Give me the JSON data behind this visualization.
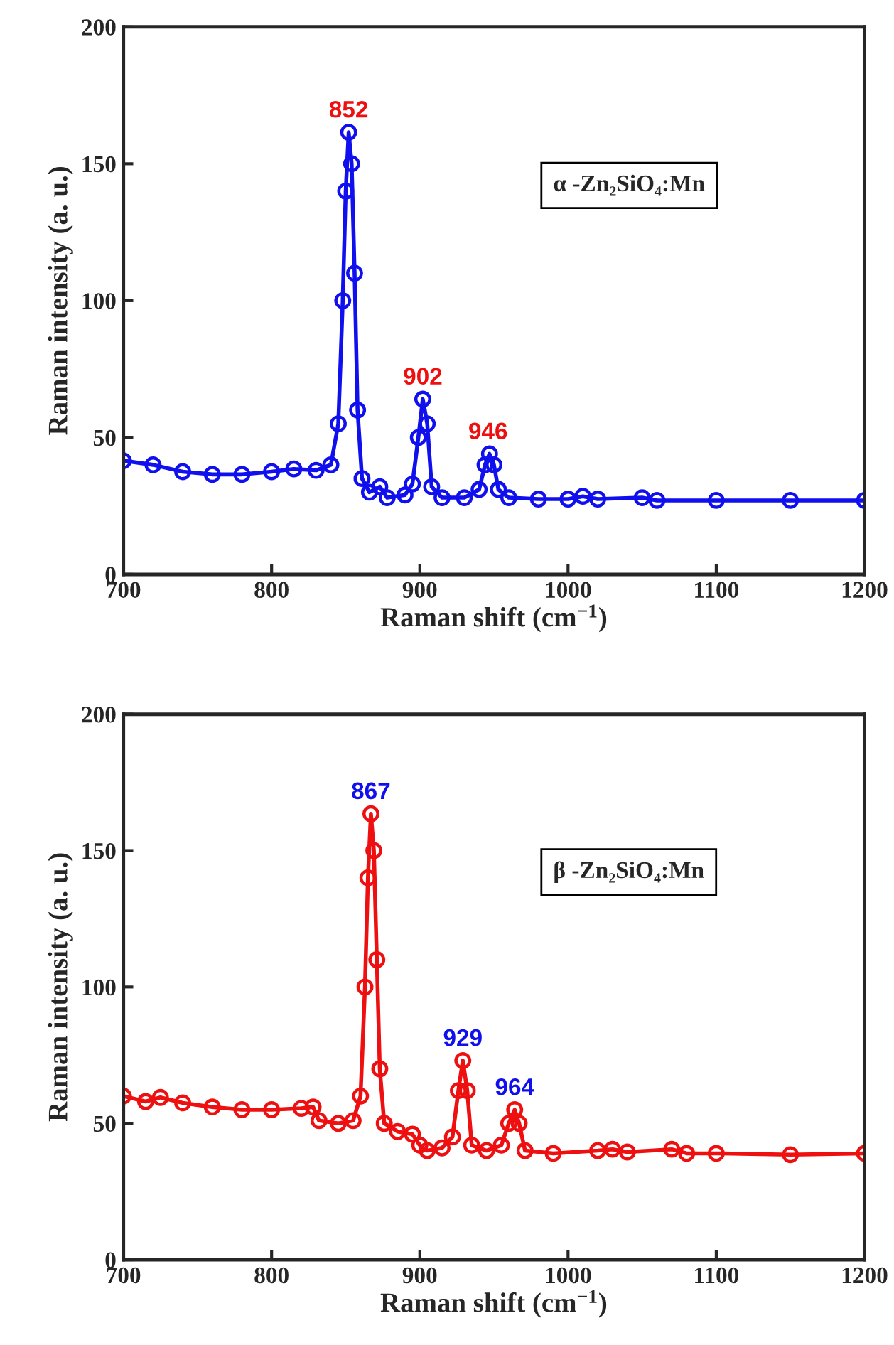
{
  "chart_data": [
    {
      "type": "line",
      "marker": "circle",
      "xlabel": "Raman shift (cm$^{−1}$)",
      "ylabel": "Raman intensity (a. u.)",
      "xlim": [
        700,
        1200
      ],
      "ylim": [
        0,
        200
      ],
      "xticks": [
        700,
        800,
        900,
        1000,
        1100,
        1200
      ],
      "yticks": [
        0,
        50,
        100,
        150,
        200
      ],
      "grid": false,
      "series": [
        {
          "color": "#1010ee",
          "x": [
            700,
            720,
            740,
            760,
            780,
            800,
            815,
            830,
            840,
            845,
            848,
            850,
            852,
            854,
            856,
            858,
            861,
            866,
            873,
            878,
            890,
            895,
            899,
            902,
            905,
            908,
            915,
            930,
            940,
            944,
            947,
            950,
            953,
            960,
            980,
            1000,
            1010,
            1020,
            1050,
            1060,
            1100,
            1150,
            1200
          ],
          "values": [
            41.5,
            40,
            37.5,
            36.5,
            36.5,
            37.5,
            38.5,
            38,
            40,
            55,
            100,
            140,
            161.5,
            150,
            110,
            60,
            35,
            30,
            32,
            28,
            29,
            33,
            50,
            64,
            55,
            32,
            28,
            28,
            31,
            40,
            44,
            40,
            31,
            28,
            27.5,
            27.5,
            28.5,
            27.5,
            28,
            27,
            27,
            27,
            27
          ]
        }
      ],
      "annotations": [
        {
          "text": "852",
          "x": 852,
          "y": 161.5
        },
        {
          "text": "902",
          "x": 902,
          "y": 64
        },
        {
          "text": "946",
          "x": 946,
          "y": 44
        },
        "α -Zn₂SiO₄:Mn"
      ]
    },
    {
      "type": "line",
      "marker": "circle",
      "xlabel": "Raman shift (cm$^{−1}$)",
      "ylabel": "Raman intensity (a. u.)",
      "xlim": [
        700,
        1200
      ],
      "ylim": [
        0,
        200
      ],
      "xticks": [
        700,
        800,
        900,
        1000,
        1100,
        1200
      ],
      "yticks": [
        0,
        50,
        100,
        150,
        200
      ],
      "grid": false,
      "series": [
        {
          "color": "#ee1010",
          "x": [
            700,
            715,
            725,
            740,
            760,
            780,
            800,
            820,
            828,
            832,
            845,
            855,
            860,
            863,
            865,
            867,
            869,
            871,
            873,
            876,
            885,
            895,
            900,
            905,
            915,
            922,
            926,
            929,
            932,
            935,
            945,
            955,
            960,
            964,
            967,
            971,
            990,
            1020,
            1030,
            1040,
            1070,
            1080,
            1100,
            1150,
            1200
          ],
          "values": [
            60,
            58,
            59.5,
            57.5,
            56,
            55,
            55,
            55.5,
            56,
            51,
            50,
            51,
            60,
            100,
            140,
            163.5,
            150,
            110,
            70,
            50,
            47,
            46,
            42,
            40,
            41,
            45,
            62,
            73,
            62,
            42,
            40,
            42,
            50,
            55,
            50,
            40,
            39,
            40,
            40.5,
            39.5,
            40.5,
            39,
            39,
            38.5,
            39
          ]
        }
      ],
      "annotations": [
        {
          "text": "867",
          "x": 867,
          "y": 163.5
        },
        {
          "text": "929",
          "x": 929,
          "y": 73
        },
        {
          "text": "964",
          "x": 964,
          "y": 55
        },
        "β -Zn₂SiO₄:Mn"
      ]
    }
  ]
}
